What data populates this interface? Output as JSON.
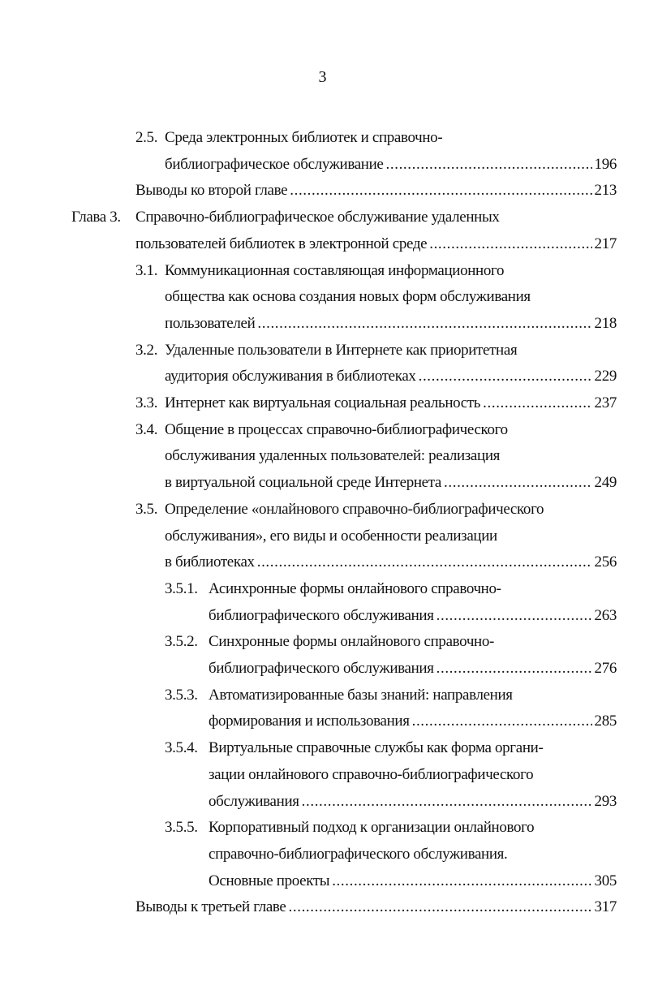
{
  "page_number": "3",
  "entries": [
    {
      "number": "2.5.",
      "lines": [
        "Среда электронных библиотек и справочно-",
        "библиографическое обслуживание"
      ],
      "page": "196"
    },
    {
      "number": "",
      "lines": [
        "Выводы ко второй главе"
      ],
      "page": "213"
    },
    {
      "number": "Глава 3.",
      "lines": [
        "Справочно-библиографическое обслуживание удаленных",
        "пользователей библиотек в электронной среде"
      ],
      "page": "217"
    },
    {
      "number": "3.1.",
      "lines": [
        "Коммуникационная составляющая информационного",
        "общества как основа создания новых форм обслуживания",
        "пользователей"
      ],
      "page": "218"
    },
    {
      "number": "3.2.",
      "lines": [
        "Удаленные пользователи в Интернете как приоритетная",
        "аудитория обслуживания в библиотеках"
      ],
      "page": "229"
    },
    {
      "number": "3.3.",
      "lines": [
        "Интернет как виртуальная социальная реальность"
      ],
      "page": "237"
    },
    {
      "number": "3.4.",
      "lines": [
        "Общение в процессах справочно-библиографического",
        "обслуживания удаленных пользователей: реализация",
        "в виртуальной социальной среде Интернета"
      ],
      "page": "249"
    },
    {
      "number": "3.5.",
      "lines": [
        "Определение «онлайнового справочно-библиографического",
        "обслуживания», его виды и особенности реализации",
        "в библиотеках"
      ],
      "page": "256"
    },
    {
      "number": "3.5.1.",
      "lines": [
        "Асинхронные формы онлайнового справочно-",
        "библиографического обслуживания"
      ],
      "page": "263"
    },
    {
      "number": "3.5.2.",
      "lines": [
        "Синхронные формы онлайнового справочно-",
        "библиографического обслуживания"
      ],
      "page": "276"
    },
    {
      "number": "3.5.3.",
      "lines": [
        "Автоматизированные базы знаний: направления",
        "формирования и использования"
      ],
      "page": "285"
    },
    {
      "number": "3.5.4.",
      "lines": [
        "Виртуальные справочные службы как форма органи-",
        "зации онлайнового справочно-библиографического",
        "обслуживания"
      ],
      "page": "293"
    },
    {
      "number": "3.5.5.",
      "lines": [
        "Корпоративный подход к организации онлайнового",
        "справочно-библиографического обслуживания.",
        "Основные проекты"
      ],
      "page": "305"
    },
    {
      "number": "",
      "lines": [
        "Выводы к третьей главе"
      ],
      "page": "317"
    }
  ]
}
